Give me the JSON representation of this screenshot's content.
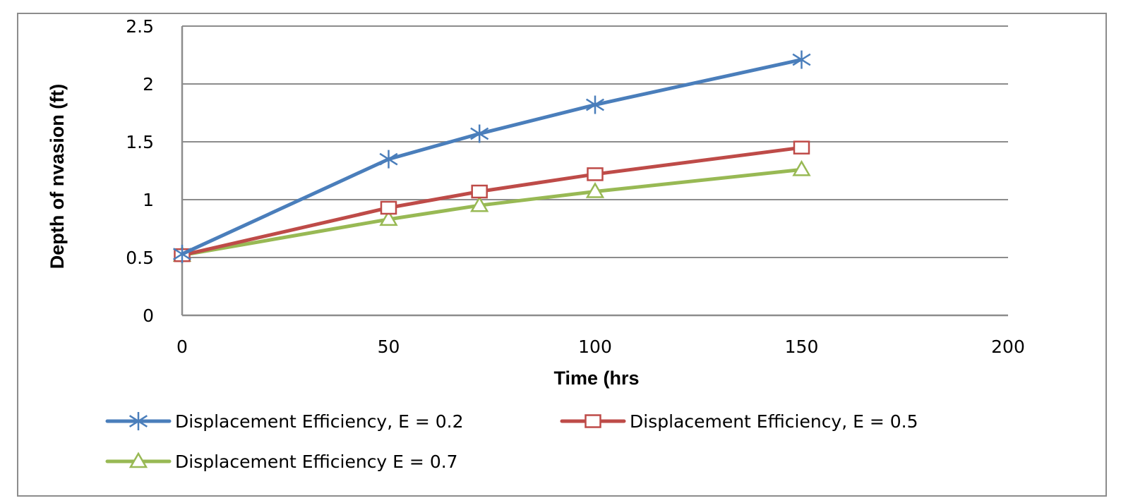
{
  "chart_data": {
    "type": "line",
    "title": "",
    "xlabel": "Time (hrs",
    "ylabel": "Depth of nvasion  (ft)",
    "xlim": [
      0,
      200
    ],
    "ylim": [
      0,
      2.5
    ],
    "xticks": [
      "0",
      "50",
      "100",
      "150",
      "200"
    ],
    "yticks": [
      "0",
      "0.5",
      "1",
      "1.5",
      "2",
      "2.5"
    ],
    "grid": "horizontal",
    "legend_position": "bottom",
    "series": [
      {
        "name": "Displacement Efficiency, E = 0.2",
        "color": "#4a7ebb",
        "marker": "asterisk",
        "x": [
          0,
          50,
          72,
          100,
          150
        ],
        "y": [
          0.53,
          1.35,
          1.57,
          1.82,
          2.21
        ]
      },
      {
        "name": "Displacement Efficiency, E = 0.5",
        "color": "#be4b48",
        "marker": "square",
        "x": [
          0,
          50,
          72,
          100,
          150
        ],
        "y": [
          0.52,
          0.93,
          1.07,
          1.22,
          1.45
        ]
      },
      {
        "name": "Displacement Efficiency E = 0.7",
        "color": "#98b954",
        "marker": "triangle",
        "x": [
          0,
          50,
          72,
          100,
          150
        ],
        "y": [
          0.52,
          0.83,
          0.95,
          1.07,
          1.26
        ]
      }
    ]
  }
}
